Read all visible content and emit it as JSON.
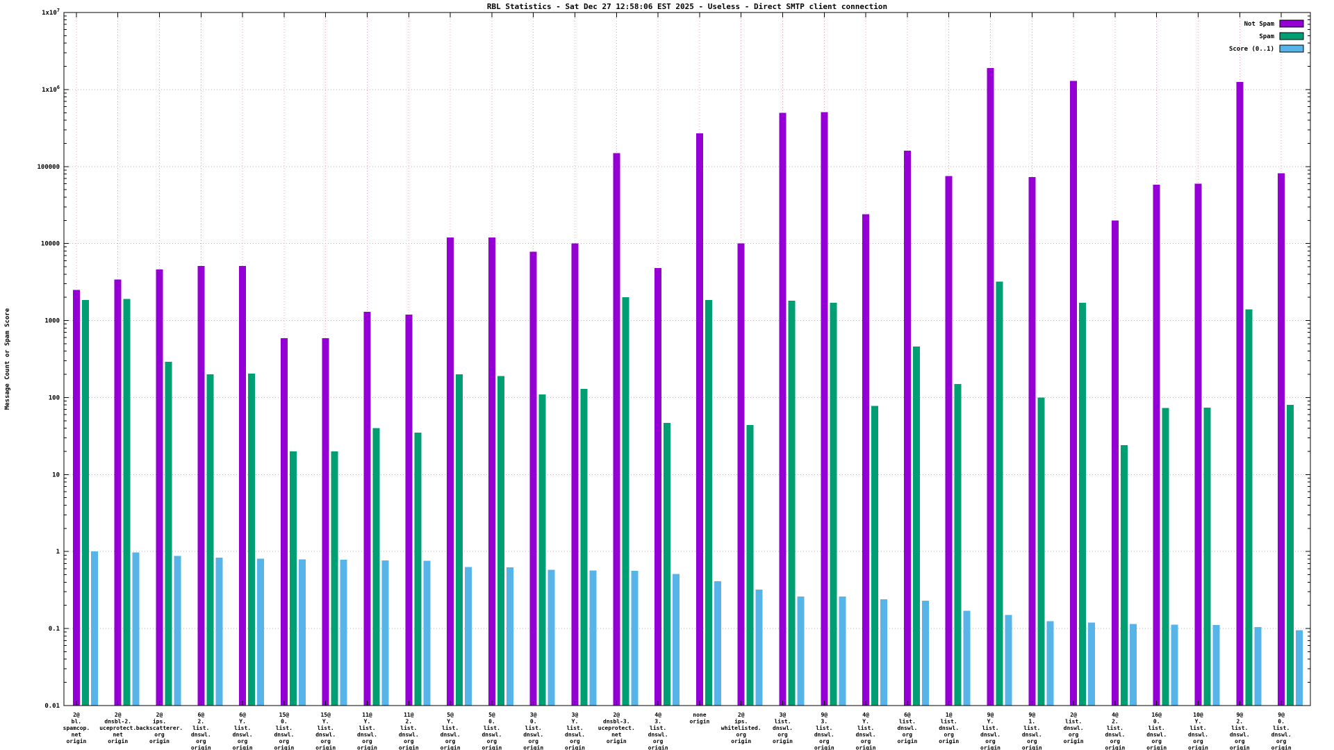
{
  "title": "RBL Statistics - Sat Dec 27 12:58:06 EST 2025 - Useless - Direct SMTP client connection",
  "ylabel": "Message Count or Spam Score",
  "legend": [
    {
      "label": "Not Spam",
      "color": "#9400d3"
    },
    {
      "label": "Spam",
      "color": "#009e73"
    },
    {
      "label": "Score (0..1)",
      "color": "#56b4e9"
    }
  ],
  "chart_data": {
    "type": "bar",
    "scale": "log",
    "ylim": [
      0.01,
      10000000
    ],
    "grid": true,
    "legend_position": "top-right",
    "yticks": [
      {
        "value": 10000000,
        "label": "1x10^7"
      },
      {
        "value": 1000000,
        "label": "1x10^6"
      },
      {
        "value": 100000,
        "label": "100000"
      },
      {
        "value": 10000,
        "label": "10000"
      },
      {
        "value": 1000,
        "label": "1000"
      },
      {
        "value": 100,
        "label": "100"
      },
      {
        "value": 10,
        "label": "10"
      },
      {
        "value": 1,
        "label": "1"
      },
      {
        "value": 0.1,
        "label": "0.1"
      },
      {
        "value": 0.01,
        "label": "0.01"
      }
    ],
    "categories": [
      [
        "2@",
        "bl.",
        "spamcop.",
        "net",
        "origin"
      ],
      [
        "2@",
        "dnsbl-2.",
        "uceprotect.",
        "net",
        "origin"
      ],
      [
        "2@",
        "ips.",
        "backscatterer.",
        "org",
        "origin"
      ],
      [
        "6@",
        "2.",
        "list.",
        "dnswl.",
        "org",
        "origin"
      ],
      [
        "6@",
        "Y.",
        "list.",
        "dnswl.",
        "org",
        "origin"
      ],
      [
        "15@",
        "0.",
        "list.",
        "dnswl.",
        "org",
        "origin"
      ],
      [
        "15@",
        "Y.",
        "list.",
        "dnswl.",
        "org",
        "origin"
      ],
      [
        "11@",
        "Y.",
        "list.",
        "dnswl.",
        "org",
        "origin"
      ],
      [
        "11@",
        "2.",
        "list.",
        "dnswl.",
        "org",
        "origin"
      ],
      [
        "5@",
        "Y.",
        "list.",
        "dnswl.",
        "org",
        "origin"
      ],
      [
        "5@",
        "0.",
        "list.",
        "dnswl.",
        "org",
        "origin"
      ],
      [
        "3@",
        "0.",
        "list.",
        "dnswl.",
        "org",
        "origin"
      ],
      [
        "3@",
        "Y.",
        "list.",
        "dnswl.",
        "org",
        "origin"
      ],
      [
        "2@",
        "dnsbl-3.",
        "uceprotect.",
        "net",
        "origin"
      ],
      [
        "4@",
        "3.",
        "list.",
        "dnswl.",
        "org",
        "origin"
      ],
      [
        "none",
        "origin"
      ],
      [
        "2@",
        "ips.",
        "whitelisted.",
        "org",
        "origin"
      ],
      [
        "3@",
        "list.",
        "dnswl.",
        "org",
        "origin"
      ],
      [
        "9@",
        "3.",
        "list.",
        "dnswl.",
        "org",
        "origin"
      ],
      [
        "4@",
        "Y.",
        "list.",
        "dnswl.",
        "org",
        "origin"
      ],
      [
        "6@",
        "list.",
        "dnswl.",
        "org",
        "origin"
      ],
      [
        "1@",
        "list.",
        "dnswl.",
        "org",
        "origin"
      ],
      [
        "9@",
        "Y.",
        "list.",
        "dnswl.",
        "org",
        "origin"
      ],
      [
        "9@",
        "1.",
        "list.",
        "dnswl.",
        "org",
        "origin"
      ],
      [
        "2@",
        "list.",
        "dnswl.",
        "org",
        "origin"
      ],
      [
        "4@",
        "2.",
        "list.",
        "dnswl.",
        "org",
        "origin"
      ],
      [
        "16@",
        "0.",
        "list.",
        "dnswl.",
        "org",
        "origin"
      ],
      [
        "10@",
        "Y.",
        "list.",
        "dnswl.",
        "org",
        "origin"
      ],
      [
        "9@",
        "2.",
        "list.",
        "dnswl.",
        "org",
        "origin"
      ],
      [
        "9@",
        "0.",
        "list.",
        "dnswl.",
        "org",
        "origin"
      ]
    ],
    "series": [
      {
        "name": "Not Spam",
        "color": "#9400d3",
        "values": [
          2500,
          3400,
          4600,
          5100,
          5100,
          590,
          590,
          1300,
          1200,
          12000,
          12000,
          7800,
          10000,
          150000,
          4800,
          270000,
          10000,
          500000,
          510000,
          24000,
          160000,
          75000,
          1900000,
          73000,
          1300000,
          20000,
          58000,
          60000,
          1250000,
          82000
        ]
      },
      {
        "name": "Spam",
        "color": "#009e73",
        "values": [
          1850,
          1900,
          290,
          200,
          205,
          20,
          20,
          40,
          35,
          200,
          190,
          110,
          130,
          2000,
          47,
          1850,
          44,
          1800,
          1700,
          78,
          460,
          150,
          3200,
          100,
          1700,
          24,
          73,
          74,
          1400,
          80
        ]
      },
      {
        "name": "Score (0..1)",
        "color": "#56b4e9",
        "values": [
          1.0,
          0.97,
          0.88,
          0.83,
          0.81,
          0.79,
          0.78,
          0.77,
          0.76,
          0.63,
          0.62,
          0.58,
          0.57,
          0.56,
          0.51,
          0.41,
          0.32,
          0.26,
          0.26,
          0.24,
          0.23,
          0.17,
          0.15,
          0.125,
          0.12,
          0.115,
          0.112,
          0.111,
          0.105,
          0.095
        ]
      }
    ]
  }
}
